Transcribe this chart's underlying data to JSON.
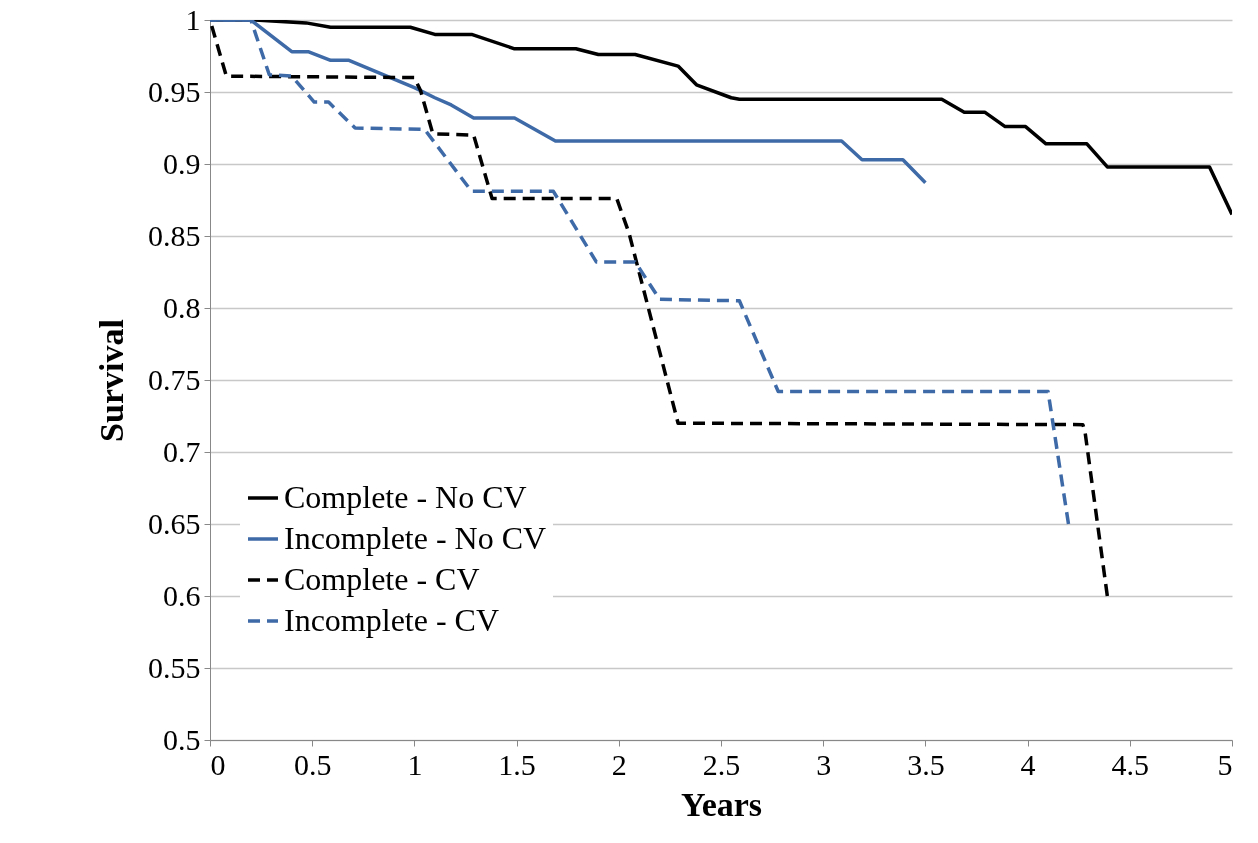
{
  "chart_data": {
    "type": "line",
    "xlabel": "Years",
    "ylabel": "Survival",
    "xlim": [
      0,
      5
    ],
    "xticks": [
      0,
      0.5,
      1,
      1.5,
      2,
      2.5,
      3,
      3.5,
      4,
      4.5,
      5
    ],
    "ylim": [
      0.5,
      1
    ],
    "yticks": [
      0.5,
      0.55,
      0.6,
      0.65,
      0.7,
      0.75,
      0.8,
      0.85,
      0.9,
      0.95,
      1
    ],
    "grid": "y",
    "legend": "bottom left",
    "marker": "none",
    "series": [
      {
        "name": "Complete - No CV",
        "color": "#000000",
        "line_style": "solid",
        "x": [
          0,
          0.22,
          0.47,
          0.59,
          0.98,
          1.1,
          1.28,
          1.49,
          1.79,
          1.9,
          2.08,
          2.29,
          2.38,
          2.55,
          2.59,
          3.58,
          3.69,
          3.79,
          3.89,
          3.99,
          4.09,
          4.29,
          4.39,
          4.89,
          5
        ],
        "values": [
          1,
          1,
          0.998,
          0.995,
          0.995,
          0.99,
          0.99,
          0.98,
          0.98,
          0.976,
          0.976,
          0.968,
          0.955,
          0.946,
          0.945,
          0.945,
          0.936,
          0.936,
          0.926,
          0.926,
          0.914,
          0.914,
          0.898,
          0.898,
          0.865
        ]
      },
      {
        "name": "Incomplete - No CV",
        "color": "#3e6aa8",
        "line_style": "solid",
        "x": [
          0,
          0.2,
          0.4,
          0.48,
          0.59,
          0.68,
          0.9,
          1.0,
          1.1,
          1.18,
          1.29,
          1.49,
          1.69,
          3.09,
          3.19,
          3.39,
          3.5
        ],
        "values": [
          1,
          1,
          0.978,
          0.978,
          0.972,
          0.972,
          0.959,
          0.953,
          0.946,
          0.941,
          0.932,
          0.932,
          0.916,
          0.916,
          0.903,
          0.903,
          0.887
        ]
      },
      {
        "name": "Complete - CV",
        "color": "#000000",
        "line_style": "dashed",
        "x": [
          0,
          0.08,
          1.0,
          1.03,
          1.09,
          1.29,
          1.38,
          1.99,
          2.05,
          2.29,
          4.27,
          4.28,
          4.39
        ],
        "values": [
          1,
          0.961,
          0.96,
          0.951,
          0.921,
          0.92,
          0.876,
          0.876,
          0.852,
          0.72,
          0.719,
          0.715,
          0.6
        ]
      },
      {
        "name": "Incomplete - CV",
        "color": "#3e6aa8",
        "line_style": "dashed",
        "x": [
          0,
          0.2,
          0.29,
          0.4,
          0.51,
          0.58,
          0.71,
          1.05,
          1.28,
          1.68,
          1.89,
          2.08,
          2.2,
          2.59,
          2.78,
          4.1,
          4.2
        ],
        "values": [
          1,
          1,
          0.962,
          0.961,
          0.943,
          0.943,
          0.925,
          0.924,
          0.881,
          0.881,
          0.832,
          0.832,
          0.806,
          0.805,
          0.742,
          0.742,
          0.65
        ]
      }
    ]
  }
}
